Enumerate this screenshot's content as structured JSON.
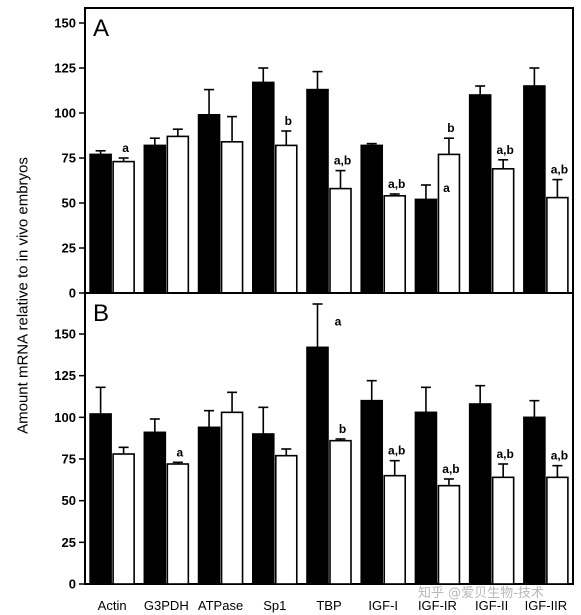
{
  "figure": {
    "ylabel": "Amount mRNA relative to in vivo embryos",
    "watermark": "知乎 @爱贝生物-技术"
  },
  "chart_data": [
    {
      "type": "bar",
      "panel": "A",
      "categories": [
        "Actin",
        "G3PDH",
        "ATPase",
        "Sp1",
        "TBP",
        "IGF-I",
        "IGF-IR",
        "IGF-II",
        "IGF-IIR"
      ],
      "series": [
        {
          "color": "#000000",
          "values": [
            77,
            82,
            99,
            117,
            113,
            82,
            52,
            110,
            115
          ],
          "errors": [
            2,
            4,
            14,
            8,
            10,
            1,
            8,
            5,
            10
          ]
        },
        {
          "color": "#ffffff",
          "values": [
            73,
            87,
            84,
            82,
            58,
            54,
            77,
            69,
            53
          ],
          "errors": [
            2,
            4,
            14,
            8,
            10,
            1,
            9,
            5,
            10
          ]
        }
      ],
      "annotations": [
        "a",
        "",
        "",
        "b",
        "a,b",
        "a,b",
        "b",
        "a,b",
        "a,b"
      ],
      "annotation_series": [
        1,
        1,
        1,
        1,
        1,
        1,
        1,
        1,
        1
      ],
      "extra_annotations": [
        {
          "category": 6,
          "series": 0,
          "text": "a"
        }
      ],
      "ylim": [
        0,
        150
      ],
      "yticks": [
        "0",
        "25",
        "50",
        "75",
        "100",
        "125",
        "150"
      ]
    },
    {
      "type": "bar",
      "panel": "B",
      "categories": [
        "Actin",
        "G3PDH",
        "ATPase",
        "Sp1",
        "TBP",
        "IGF-I",
        "IGF-IR",
        "IGF-II",
        "IGF-IIR"
      ],
      "series": [
        {
          "color": "#000000",
          "values": [
            102,
            91,
            94,
            90,
            142,
            110,
            103,
            108,
            100
          ],
          "errors": [
            16,
            8,
            10,
            16,
            26,
            12,
            15,
            11,
            10
          ]
        },
        {
          "color": "#ffffff",
          "values": [
            78,
            72,
            103,
            77,
            86,
            65,
            59,
            64,
            64
          ],
          "errors": [
            4,
            1,
            12,
            4,
            1,
            9,
            4,
            8,
            7
          ]
        }
      ],
      "annotations": [
        "",
        "a",
        "",
        "",
        "b",
        "a,b",
        "a,b",
        "a,b",
        "a,b"
      ],
      "annotation_series": [
        1,
        1,
        1,
        1,
        1,
        1,
        1,
        1,
        1
      ],
      "extra_annotations": [
        {
          "category": 4,
          "series": 0,
          "text": "a"
        }
      ],
      "ylim": [
        0,
        175
      ],
      "yticks": [
        "0",
        "25",
        "50",
        "75",
        "100",
        "125",
        "150"
      ]
    }
  ]
}
